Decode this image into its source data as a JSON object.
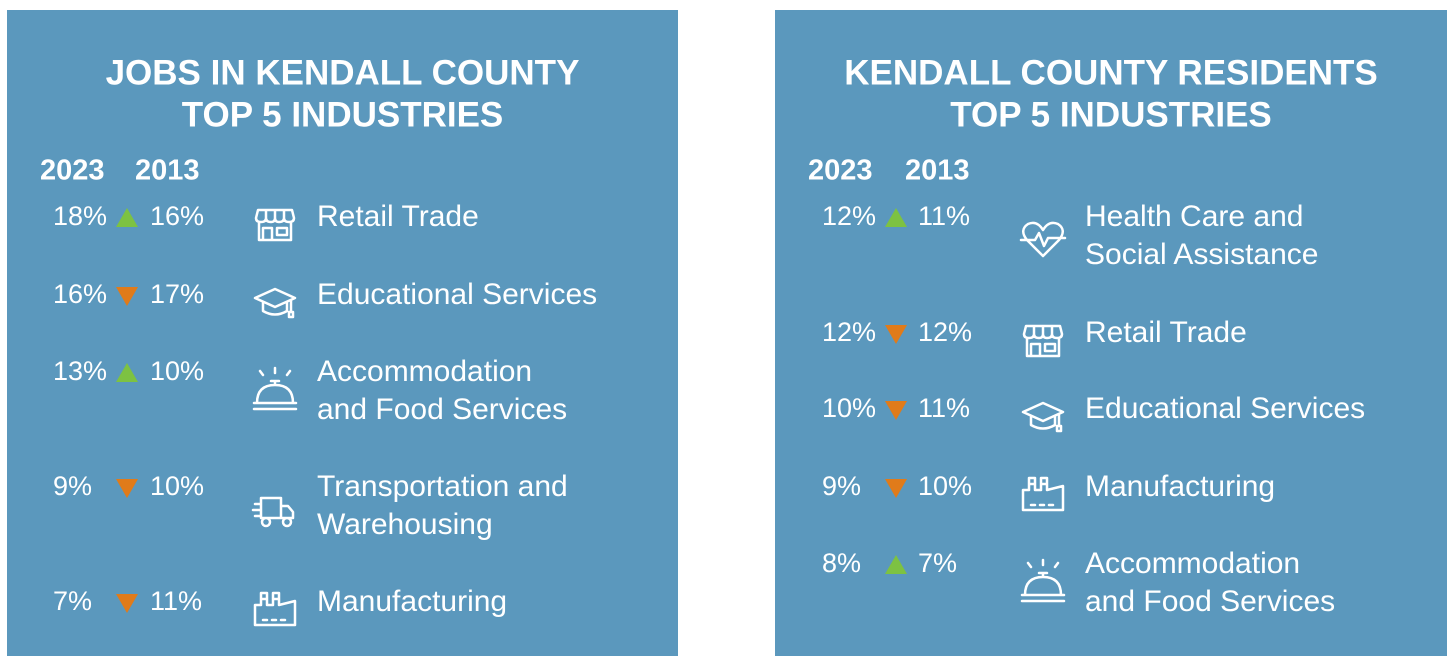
{
  "panels": [
    {
      "title_lines": [
        "JOBS IN KENDALL COUNTY",
        "TOP 5 INDUSTRIES"
      ],
      "col_headers": [
        "2023",
        "2013"
      ],
      "rows": [
        {
          "v2023": "18%",
          "trend": "up",
          "v2013": "16%",
          "icon": "store",
          "label_lines": [
            "Retail Trade"
          ]
        },
        {
          "v2023": "16%",
          "trend": "down",
          "v2013": "17%",
          "icon": "cap",
          "label_lines": [
            "Educational Services"
          ]
        },
        {
          "v2023": "13%",
          "trend": "up",
          "v2013": "10%",
          "icon": "bell",
          "label_lines": [
            "Accommodation",
            "and Food Services"
          ]
        },
        {
          "v2023": "9%",
          "trend": "down",
          "v2013": "10%",
          "icon": "truck",
          "label_lines": [
            "Transportation and",
            "Warehousing"
          ]
        },
        {
          "v2023": "7%",
          "trend": "down",
          "v2013": "11%",
          "icon": "factory",
          "label_lines": [
            "Manufacturing"
          ]
        }
      ]
    },
    {
      "title_lines": [
        "KENDALL COUNTY RESIDENTS",
        "TOP 5 INDUSTRIES"
      ],
      "col_headers": [
        "2023",
        "2013"
      ],
      "rows": [
        {
          "v2023": "12%",
          "trend": "up",
          "v2013": "11%",
          "icon": "heart",
          "label_lines": [
            "Health Care and",
            "Social Assistance"
          ]
        },
        {
          "v2023": "12%",
          "trend": "down",
          "v2013": "12%",
          "icon": "store",
          "label_lines": [
            "Retail Trade"
          ]
        },
        {
          "v2023": "10%",
          "trend": "down",
          "v2013": "11%",
          "icon": "cap",
          "label_lines": [
            "Educational Services"
          ]
        },
        {
          "v2023": "9%",
          "trend": "down",
          "v2013": "10%",
          "icon": "factory",
          "label_lines": [
            "Manufacturing"
          ]
        },
        {
          "v2023": "8%",
          "trend": "up",
          "v2013": "7%",
          "icon": "bell",
          "label_lines": [
            "Accommodation",
            "and Food Services"
          ]
        }
      ]
    }
  ]
}
